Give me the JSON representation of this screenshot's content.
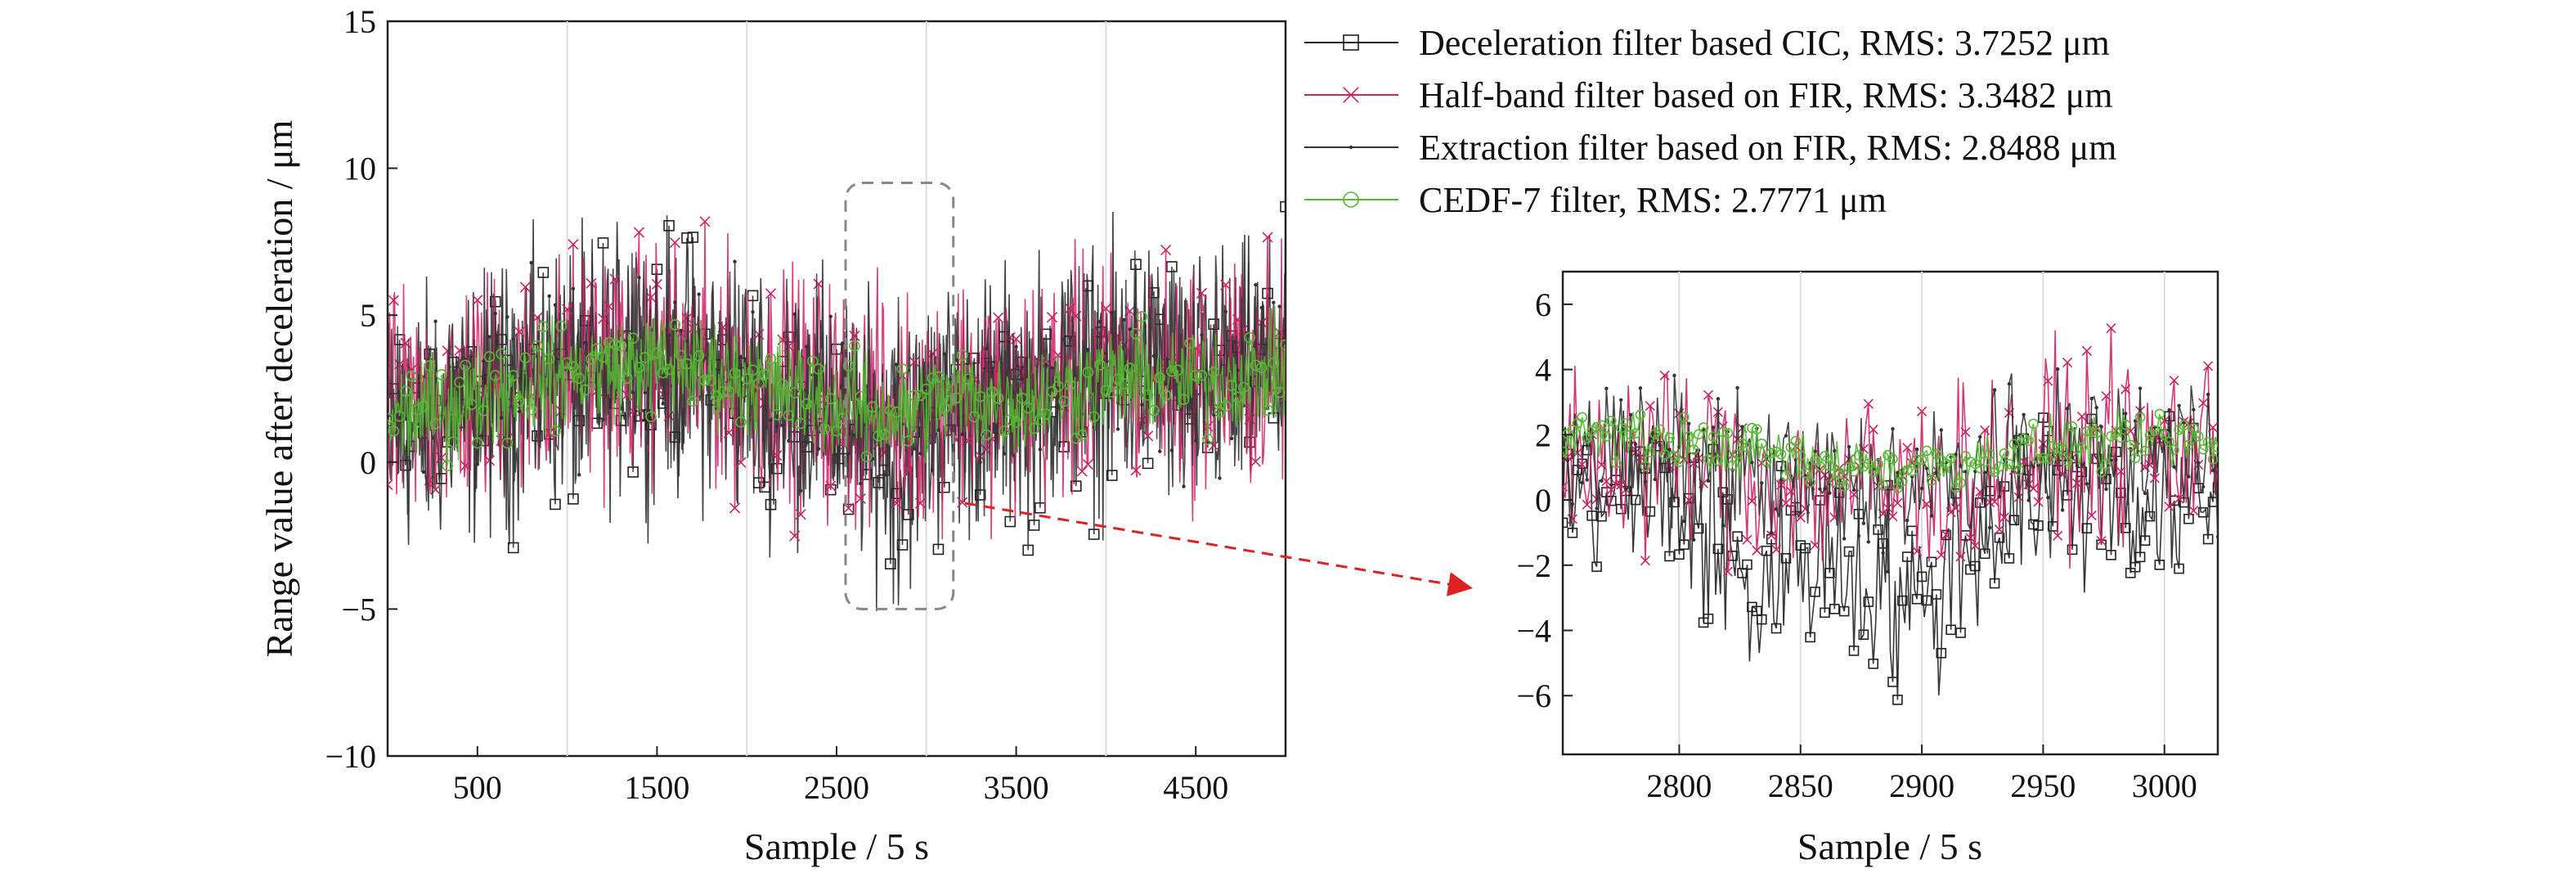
{
  "chart_data": [
    {
      "id": "main",
      "type": "line",
      "title": "",
      "xlabel": "Sample / 5 s",
      "ylabel": "Range value after deceleration / μm",
      "xlim": [
        0,
        5000
      ],
      "ylim": [
        -10,
        15
      ],
      "xticks": [
        500,
        1500,
        2500,
        3500,
        4500
      ],
      "xtick_labels": [
        "500",
        "1500",
        "2500",
        "3500",
        "4500"
      ],
      "xgrid": [
        1000,
        2000,
        3000,
        4000
      ],
      "yticks": [
        -10,
        -5,
        0,
        5,
        10,
        15
      ],
      "ytick_labels": [
        "−10",
        "−5",
        "0",
        "5",
        "10",
        "15"
      ],
      "grid": "vertical",
      "legend_position": "top-right, outside",
      "series": [
        {
          "name": "Deceleration filter based CIC, RMS: 3.7252 μm",
          "color": "#222222",
          "marker": "square",
          "x": [
            0,
            250,
            500,
            750,
            1000,
            1250,
            1500,
            1750,
            2000,
            2250,
            2500,
            2750,
            2850,
            2950,
            3150,
            3500,
            3750,
            4000,
            4250,
            4500,
            4750,
            5000
          ],
          "values": [
            1.0,
            1.5,
            1.8,
            2.2,
            3.0,
            3.2,
            3.5,
            3.0,
            2.5,
            2.3,
            1.5,
            0.5,
            -0.5,
            0.8,
            2.0,
            2.0,
            3.0,
            2.8,
            3.2,
            2.5,
            2.8,
            3.2
          ],
          "spread": 3.8
        },
        {
          "name": "Half-band filter based on FIR, RMS: 3.3482 μm",
          "color": "#cc2266",
          "marker": "x",
          "x": [
            0,
            500,
            1000,
            1500,
            2000,
            2500,
            2850,
            3150,
            3500,
            4000,
            4500,
            5000
          ],
          "values": [
            1.6,
            2.4,
            3.2,
            3.6,
            2.9,
            2.1,
            1.6,
            2.5,
            2.2,
            3.0,
            2.9,
            3.3
          ],
          "spread": 3.4
        },
        {
          "name": "Extraction filter based on FIR, RMS: 2.8488 μm",
          "color": "#333333",
          "marker": "dot",
          "x": [
            0,
            500,
            1000,
            1500,
            2000,
            2500,
            2850,
            3150,
            3500,
            4000,
            4500,
            5000
          ],
          "values": [
            1.5,
            2.3,
            3.1,
            3.5,
            2.8,
            2.0,
            1.4,
            2.4,
            2.1,
            2.9,
            2.8,
            3.2
          ],
          "spread": 2.9
        },
        {
          "name": "CEDF-7 filter, RMS: 2.7771 μm",
          "color": "#55bb33",
          "marker": "circle",
          "x": [
            0,
            500,
            1000,
            1500,
            2000,
            2500,
            2850,
            3150,
            3500,
            4000,
            4500,
            5000
          ],
          "values": [
            1.4,
            2.2,
            3.0,
            3.4,
            2.8,
            2.0,
            1.5,
            2.3,
            2.0,
            2.8,
            2.7,
            3.1
          ],
          "spread": 1.5
        }
      ],
      "highlight_region": {
        "x": [
          2550,
          3150
        ],
        "y": [
          -5,
          9.5
        ]
      }
    },
    {
      "id": "inset",
      "type": "line",
      "title": "",
      "xlabel": "Sample / 5 s",
      "ylabel": "",
      "xlim": [
        2752,
        3022
      ],
      "ylim": [
        -7.8,
        7.0
      ],
      "xticks": [
        2800,
        2850,
        2900,
        2950,
        3000
      ],
      "xtick_labels": [
        "2800",
        "2850",
        "2900",
        "2950",
        "3000"
      ],
      "yticks": [
        -6,
        -4,
        -2,
        0,
        2,
        4,
        6
      ],
      "ytick_labels": [
        "−6",
        "−4",
        "−2",
        "0",
        "2",
        "4",
        "6"
      ],
      "grid": "vertical",
      "series": [
        {
          "name": "Deceleration filter based CIC",
          "color": "#222222",
          "marker": "square",
          "x": [
            2752,
            2800,
            2830,
            2850,
            2870,
            2900,
            2920,
            2950,
            2980,
            3000,
            3022
          ],
          "values": [
            0.5,
            0.0,
            -3.0,
            -1.5,
            -2.0,
            -3.5,
            -1.0,
            0.5,
            0.5,
            -0.5,
            0.0
          ],
          "spread": 2.6
        },
        {
          "name": "Half-band filter based on FIR",
          "color": "#cc2266",
          "marker": "x",
          "x": [
            2752,
            2800,
            2850,
            2900,
            2950,
            3000,
            3022
          ],
          "values": [
            1.5,
            1.3,
            0.5,
            0.4,
            1.5,
            1.6,
            1.8
          ],
          "spread": 2.4
        },
        {
          "name": "Extraction filter based on FIR",
          "color": "#333333",
          "marker": "dot",
          "x": [
            2752,
            2800,
            2850,
            2900,
            2950,
            3000,
            3022
          ],
          "values": [
            1.5,
            1.2,
            0.5,
            0.3,
            1.4,
            1.5,
            1.7
          ],
          "spread": 2.0
        },
        {
          "name": "CEDF-7 filter",
          "color": "#55bb33",
          "marker": "circle",
          "x": [
            2752,
            2800,
            2850,
            2900,
            2950,
            3000,
            3022
          ],
          "values": [
            2.0,
            1.8,
            1.2,
            1.0,
            1.6,
            1.8,
            1.6
          ],
          "spread": 0.7
        }
      ]
    }
  ]
}
